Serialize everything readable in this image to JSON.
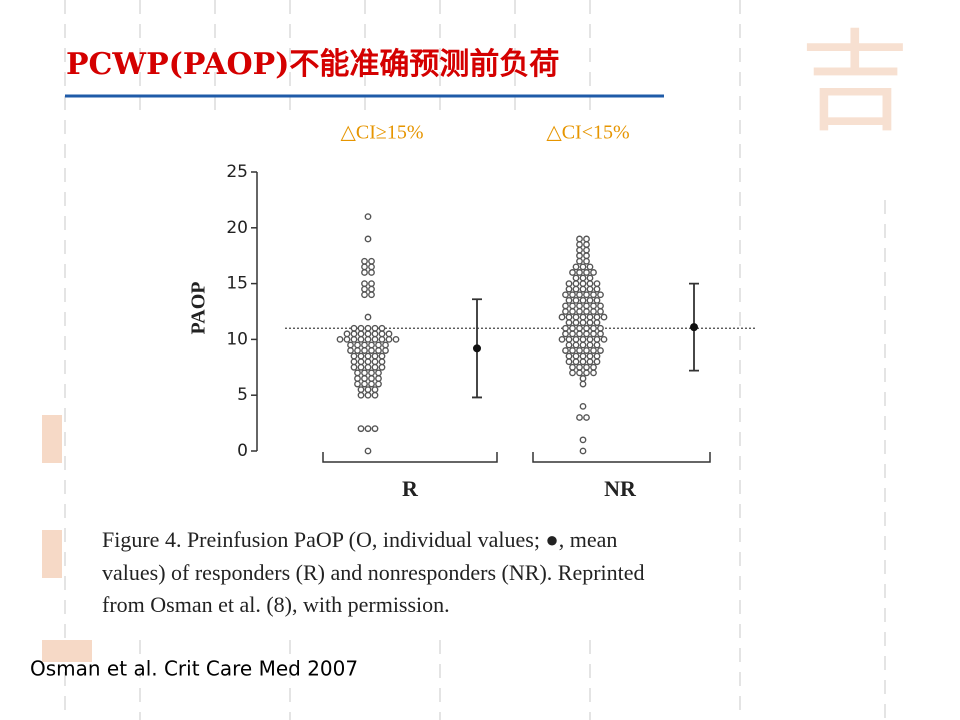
{
  "chart_data": {
    "type": "dotplot",
    "title": "PCWP(PAOP)不能准确预测前负荷",
    "annotations": [
      "△CI≥15%",
      "△CI<15%"
    ],
    "ylabel": "PAOP",
    "ylim": [
      0,
      25
    ],
    "yticks": [
      0,
      5,
      10,
      15,
      20,
      25
    ],
    "reference_line": 11,
    "categories": [
      "R",
      "NR"
    ],
    "points": [
      [
        21,
        19,
        17,
        17,
        16.5,
        16.5,
        16,
        16,
        15,
        15,
        14.5,
        14.5,
        14,
        14,
        12,
        11,
        11,
        11,
        11,
        11,
        10.5,
        10.5,
        10.5,
        10.5,
        10.5,
        10.5,
        10.5,
        10,
        10,
        10,
        10,
        10,
        10,
        10,
        10,
        10,
        9.5,
        9.5,
        9.5,
        9.5,
        9.5,
        9.5,
        9,
        9,
        9,
        9,
        9,
        9,
        8.5,
        8.5,
        8.5,
        8.5,
        8.5,
        8,
        8,
        8,
        8,
        8,
        7.5,
        7.5,
        7.5,
        7.5,
        7.5,
        7,
        7,
        7,
        7,
        6.5,
        6.5,
        6.5,
        6.5,
        6,
        6,
        6,
        6,
        5.5,
        5.5,
        5.5,
        5,
        5,
        5,
        2,
        2,
        2,
        0
      ],
      [
        19,
        19,
        18.5,
        18.5,
        18,
        18,
        17.5,
        17.5,
        17,
        17,
        16.5,
        16.5,
        16.5,
        16,
        16,
        16,
        16,
        15.5,
        15.5,
        15.5,
        15,
        15,
        15,
        15,
        15,
        14.5,
        14.5,
        14.5,
        14.5,
        14.5,
        14,
        14,
        14,
        14,
        14,
        14,
        13.5,
        13.5,
        13.5,
        13.5,
        13.5,
        13,
        13,
        13,
        13,
        13,
        13,
        12.5,
        12.5,
        12.5,
        12.5,
        12.5,
        12.5,
        12,
        12,
        12,
        12,
        12,
        12,
        12,
        11.5,
        11.5,
        11.5,
        11.5,
        11.5,
        11,
        11,
        11,
        11,
        11,
        11,
        10.5,
        10.5,
        10.5,
        10.5,
        10.5,
        10.5,
        10,
        10,
        10,
        10,
        10,
        10,
        10,
        9.5,
        9.5,
        9.5,
        9.5,
        9.5,
        9,
        9,
        9,
        9,
        9,
        9,
        8.5,
        8.5,
        8.5,
        8.5,
        8.5,
        8,
        8,
        8,
        8,
        8,
        7.5,
        7.5,
        7.5,
        7.5,
        7,
        7,
        7,
        7,
        6.5,
        6,
        4,
        3,
        3,
        1,
        0
      ]
    ],
    "means": [
      9.2,
      11.1
    ],
    "errors": [
      4.4,
      3.9
    ],
    "caption": [
      "Figure 4. Preinfusion PaOP (O, individual values; ●, mean",
      "values) of responders (R) and nonresponders (NR). Reprinted",
      "from Osman et al. (8), with permission."
    ],
    "source": "Osman et al. Crit Care Med 2007"
  }
}
